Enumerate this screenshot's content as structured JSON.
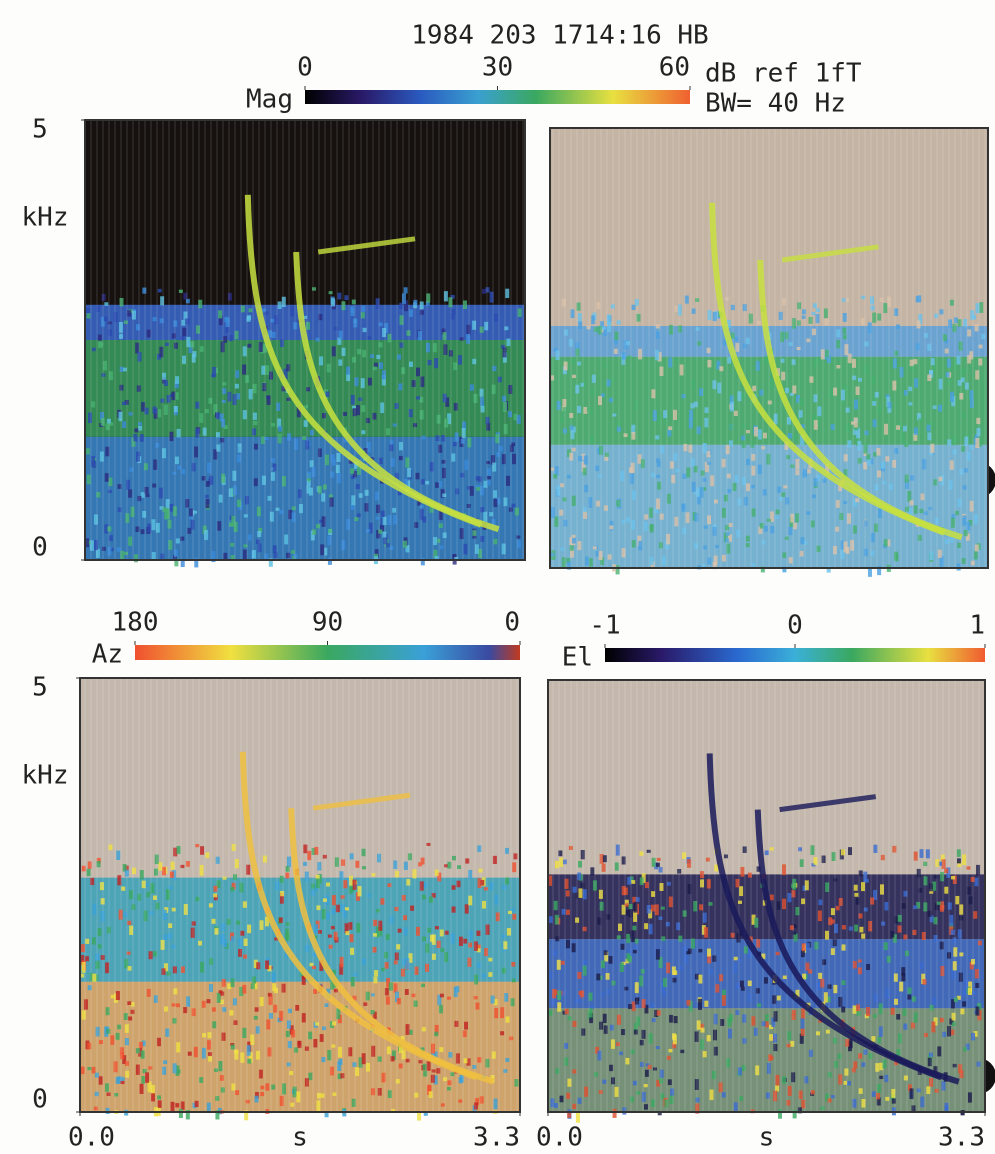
{
  "chart_data": [
    {
      "type": "spectrogram",
      "title": "1984 203 1714:16 HB",
      "colorbar": {
        "label": "Mag",
        "lim": [
          0,
          60
        ],
        "ticks": [
          0,
          30,
          60
        ],
        "unit": "dB ref 1fT"
      },
      "note": "BW= 40 Hz",
      "ylabel": "kHz",
      "ylim": [
        0,
        5
      ],
      "yticks": [
        0,
        5
      ]
    },
    {
      "type": "spectrogram"
    },
    {
      "type": "spectrogram",
      "colorbar": {
        "label": "Az",
        "lim": [
          180,
          0
        ],
        "ticks": [
          180,
          90,
          0
        ]
      },
      "ylabel": "kHz",
      "ylim": [
        0,
        5
      ],
      "yticks": [
        0,
        5
      ],
      "xlabel": "s",
      "xlim": [
        0,
        3.3
      ],
      "xticks": [
        {
          "value": 0,
          "label": "0.0"
        },
        3.3
      ]
    },
    {
      "type": "spectrogram",
      "colorbar": {
        "label": "El",
        "lim": [
          -1,
          1
        ],
        "ticks": [
          -1,
          0,
          1
        ]
      },
      "xlabel": "s",
      "xlim": [
        0,
        3.3
      ],
      "xticks": [
        {
          "value": 0,
          "label": "0.0"
        },
        3.3
      ]
    }
  ]
}
